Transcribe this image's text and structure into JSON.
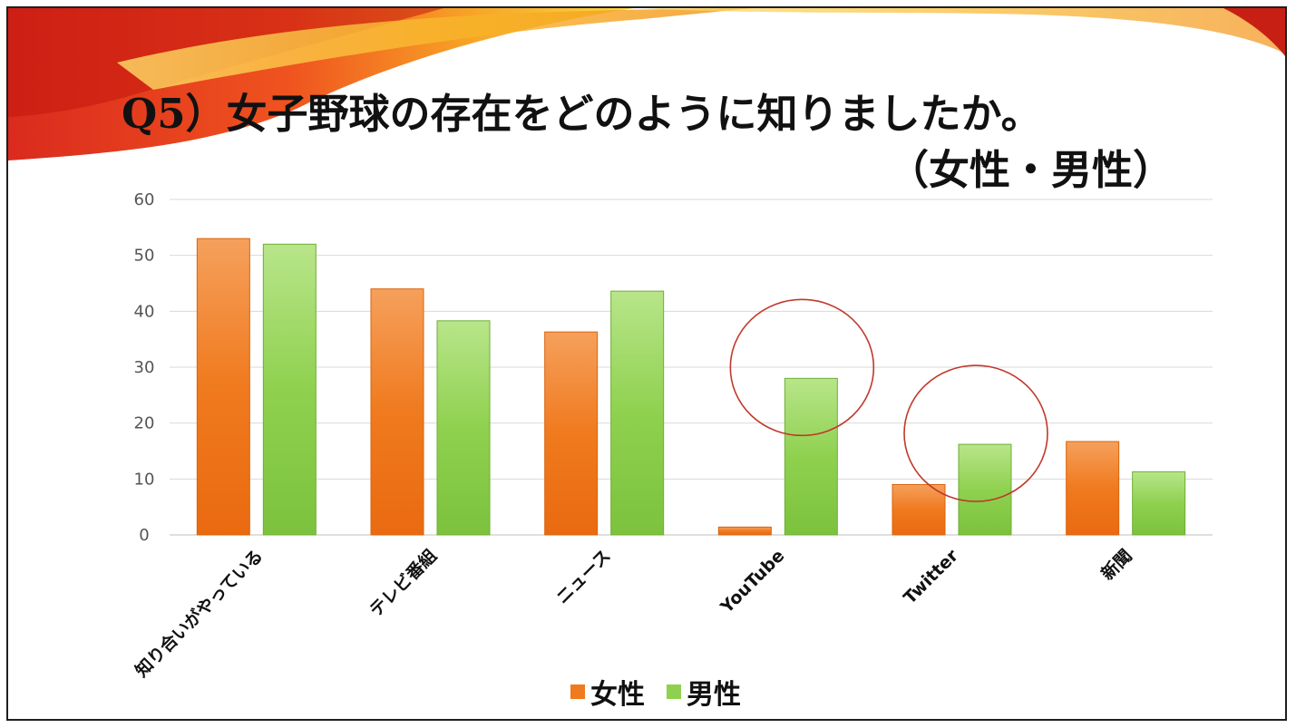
{
  "slide": {
    "title_line1": "Q5）女子野球の存在をどのように知りましたか。",
    "title_line2": "（女性・男性）"
  },
  "chart_data": {
    "type": "bar",
    "categories": [
      "知り合いがやっている",
      "テレビ番組",
      "ニュース",
      "YouTube",
      "Twitter",
      "新聞"
    ],
    "series": [
      {
        "name": "女性",
        "values": [
          53,
          44,
          36.3,
          1.4,
          9,
          16.7
        ],
        "color": "#f07a1e"
      },
      {
        "name": "男性",
        "values": [
          52,
          38.3,
          43.6,
          28,
          16.2,
          11.3
        ],
        "color": "#8fd14f"
      }
    ],
    "yticks": [
      "0",
      "10",
      "20",
      "30",
      "40",
      "50",
      "60"
    ],
    "ylim": [
      0,
      60
    ],
    "grid": true,
    "legend_position": "bottom",
    "highlight_circles_on": [
      "YouTube",
      "Twitter"
    ],
    "highlight_color": "#c0392b"
  }
}
